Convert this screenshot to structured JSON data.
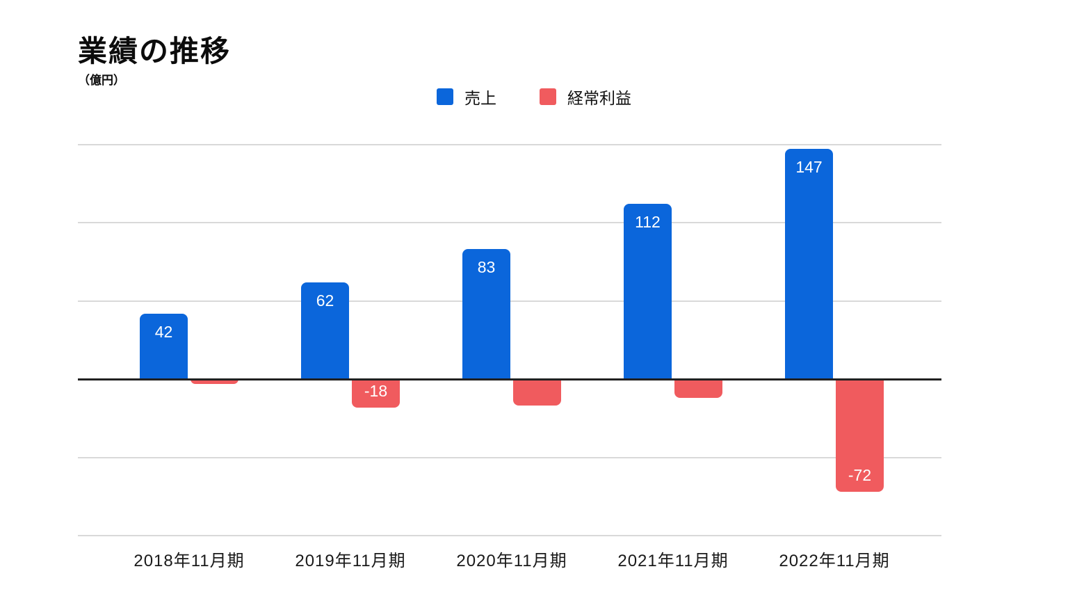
{
  "chart_data": {
    "type": "bar",
    "title": "業績の推移",
    "unit_label": "（億円）",
    "categories": [
      "2018年11月期",
      "2019年11月期",
      "2020年11月期",
      "2021年11月期",
      "2022年11月期"
    ],
    "series": [
      {
        "name": "売上",
        "color": "#0b66db",
        "values": [
          42,
          62,
          83,
          112,
          147
        ],
        "data_labels": [
          "42",
          "62",
          "83",
          "112",
          "147"
        ]
      },
      {
        "name": "経常利益",
        "color": "#f05b5e",
        "values": [
          -3,
          -18,
          -17,
          -12,
          -72
        ],
        "data_labels": [
          "",
          "-18",
          "",
          "",
          "-72"
        ]
      }
    ],
    "xlabel": "",
    "ylabel": "",
    "ylim": [
      -100,
      150
    ],
    "gridline_values": [
      150,
      100,
      50,
      0,
      -50,
      -100
    ],
    "grid": true,
    "y_axis_tick_labels_visible": false,
    "legend_position": "top-center",
    "colors": {
      "gridline": "#d9d9d9",
      "zero_line": "#212121",
      "bar_label": "#ffffff",
      "axis_label": "#1a1a1a",
      "title": "#0c0c0c",
      "background": "#ffffff"
    }
  }
}
